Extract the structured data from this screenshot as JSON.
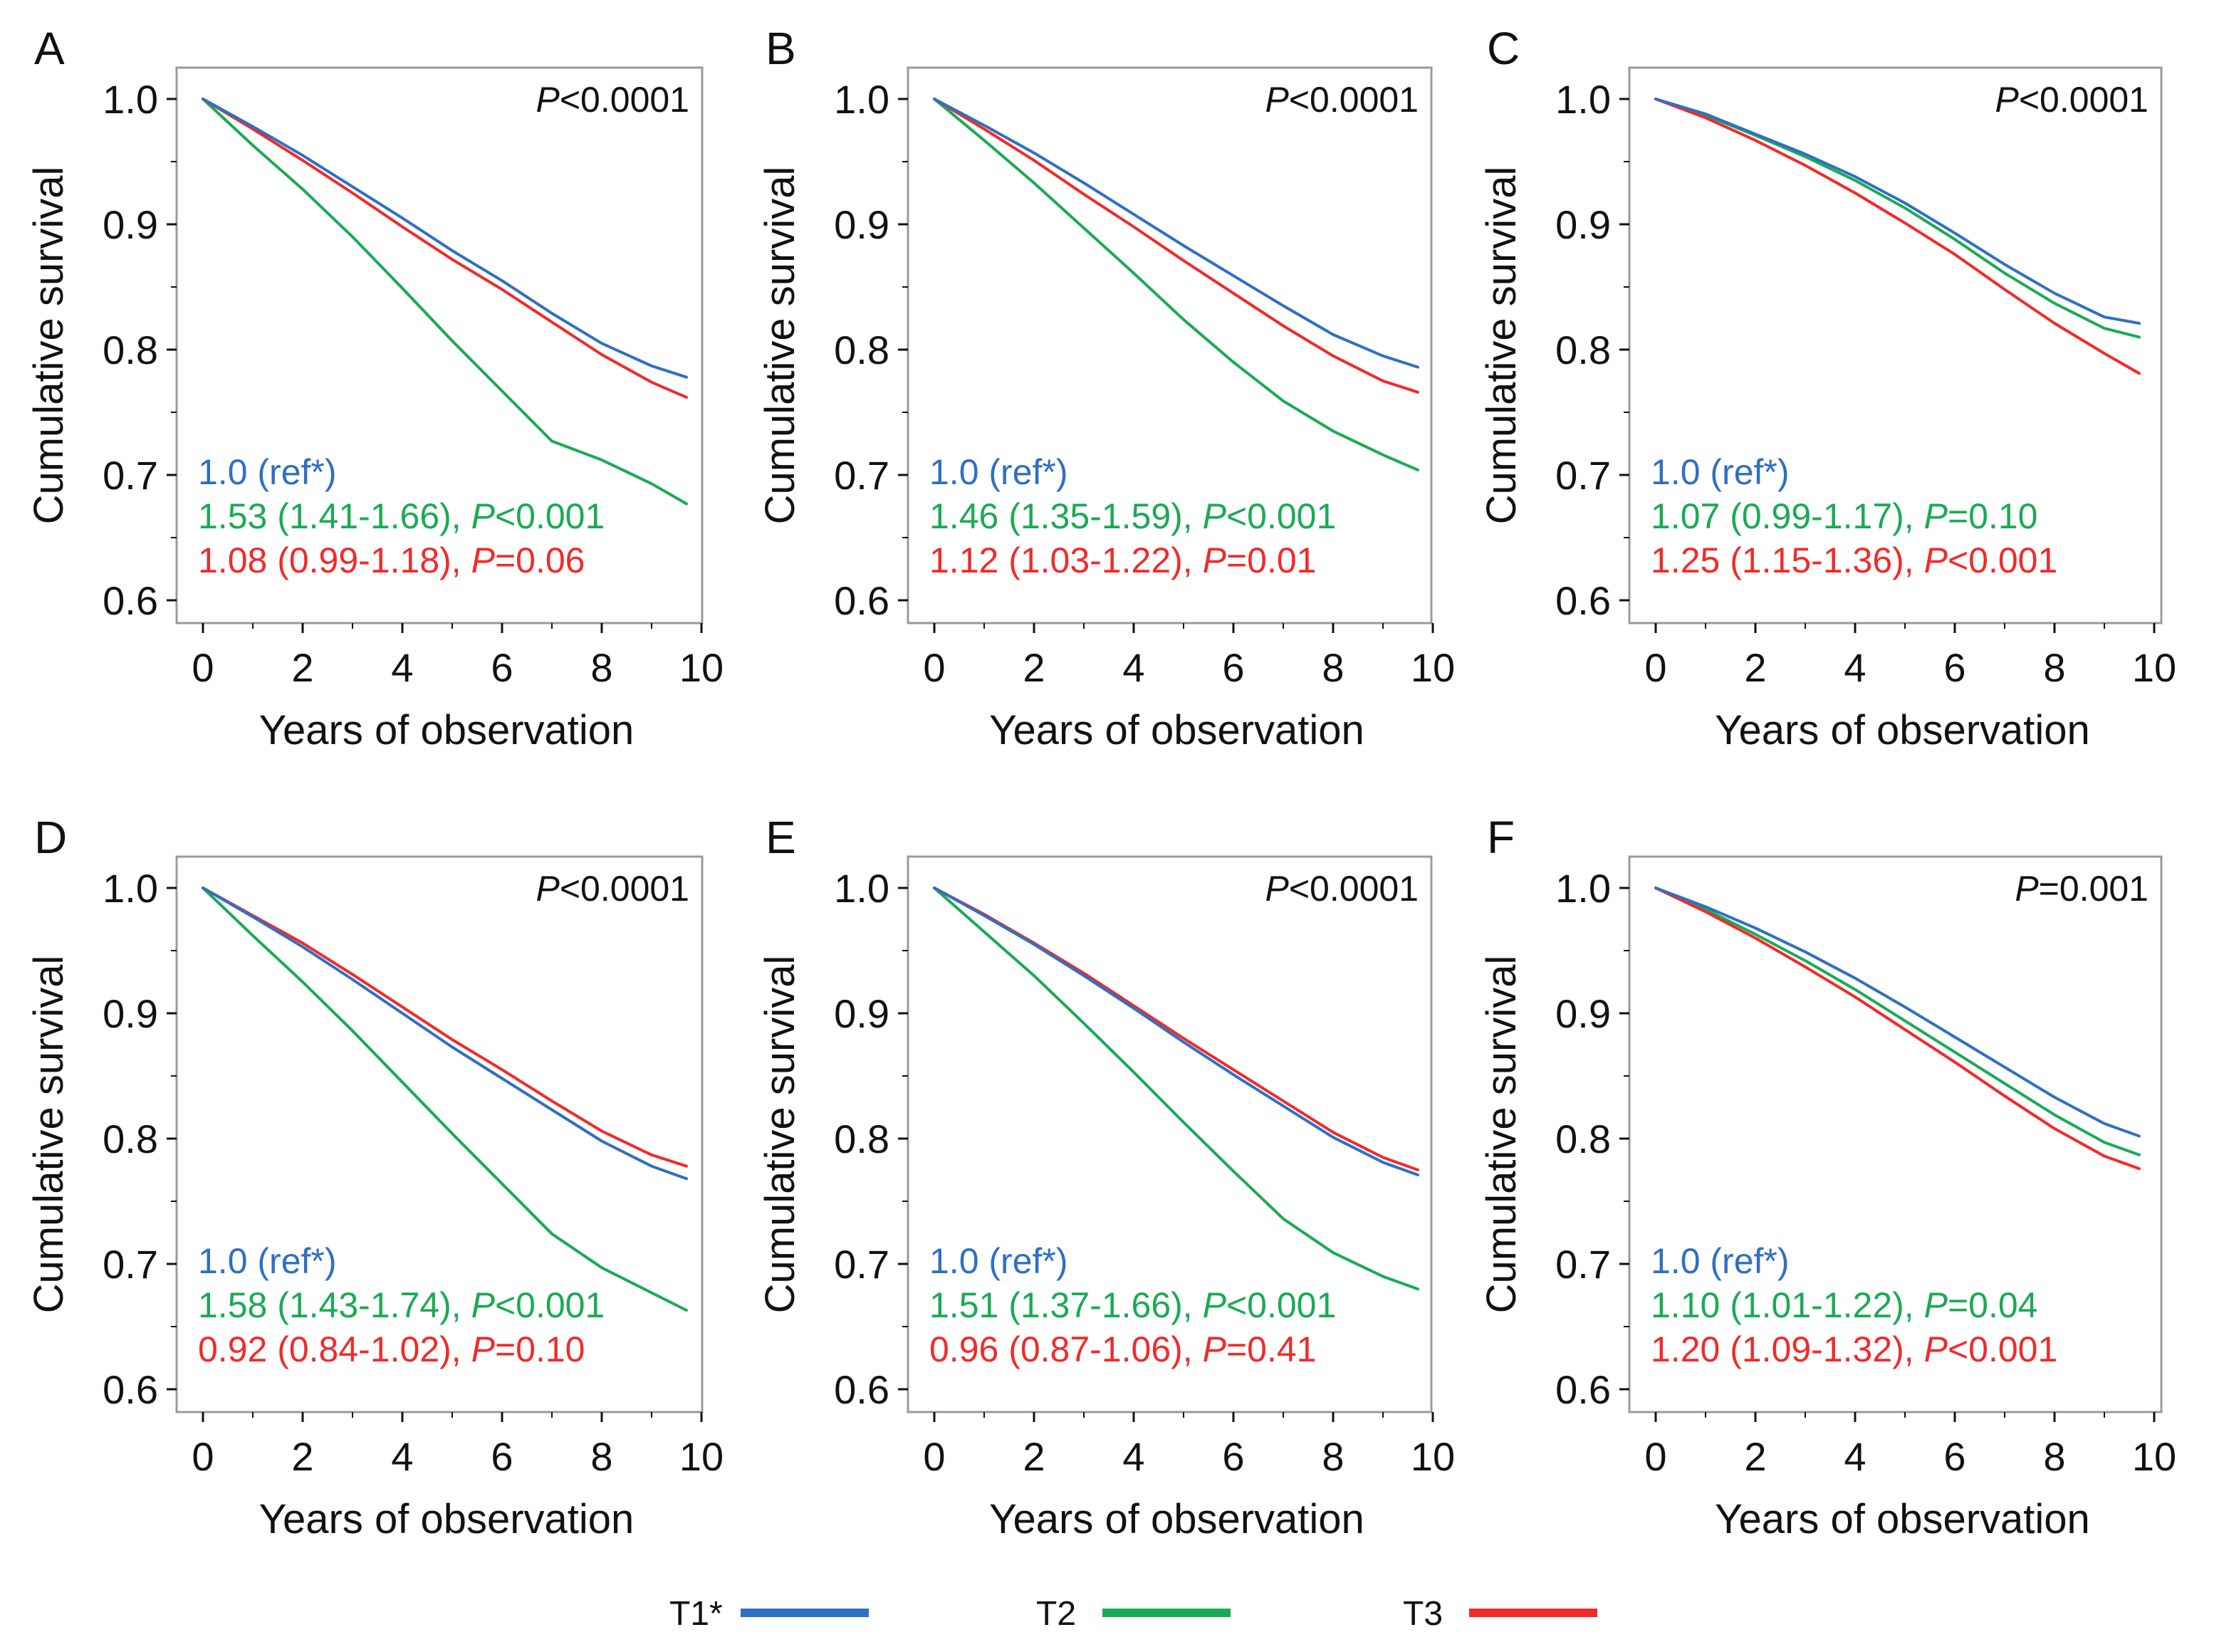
{
  "colors": {
    "T1": "#2f6fc4",
    "T2": "#1aaa55",
    "T3": "#f12a2a",
    "frame": "#9a9a9a",
    "text": "#111111"
  },
  "chart_data": [
    {
      "type": "line",
      "panel": "A",
      "xlabel": "Years of observation",
      "ylabel": "Cumulative survival",
      "xlim": [
        0,
        10
      ],
      "ylim": [
        0.6,
        1.0
      ],
      "xticks": [
        "0",
        "2",
        "4",
        "6",
        "8",
        "10"
      ],
      "yticks": [
        "0.6",
        "0.7",
        "0.8",
        "0.9",
        "1.0"
      ],
      "pvalue": {
        "italic": "P",
        "rest": "<0.0001"
      },
      "annotations": [
        {
          "series": "T1",
          "text": "1.0 (ref*)"
        },
        {
          "series": "T2",
          "text": "1.53 (1.41-1.66), ",
          "italic": "P",
          "rest": "<0.001"
        },
        {
          "series": "T3",
          "text": "1.08 (0.99-1.18), ",
          "italic": "P",
          "rest": "=0.06"
        }
      ],
      "x": [
        0,
        1,
        2,
        3,
        4,
        5,
        6,
        7,
        8,
        9,
        9.7
      ],
      "series": [
        {
          "name": "T1",
          "values": [
            1.0,
            0.978,
            0.955,
            0.93,
            0.905,
            0.879,
            0.855,
            0.829,
            0.805,
            0.787,
            0.778
          ]
        },
        {
          "name": "T2",
          "values": [
            1.0,
            0.963,
            0.928,
            0.89,
            0.849,
            0.807,
            0.767,
            0.727,
            0.712,
            0.693,
            0.677
          ]
        },
        {
          "name": "T3",
          "values": [
            1.0,
            0.976,
            0.951,
            0.925,
            0.898,
            0.872,
            0.848,
            0.822,
            0.796,
            0.774,
            0.762
          ]
        }
      ]
    },
    {
      "type": "line",
      "panel": "B",
      "xlabel": "Years of observation",
      "ylabel": "Cumulative survival",
      "xlim": [
        0,
        10
      ],
      "ylim": [
        0.6,
        1.0
      ],
      "xticks": [
        "0",
        "2",
        "4",
        "6",
        "8",
        "10"
      ],
      "yticks": [
        "0.6",
        "0.7",
        "0.8",
        "0.9",
        "1.0"
      ],
      "pvalue": {
        "italic": "P",
        "rest": "<0.0001"
      },
      "annotations": [
        {
          "series": "T1",
          "text": "1.0 (ref*)"
        },
        {
          "series": "T2",
          "text": "1.46 (1.35-1.59), ",
          "italic": "P",
          "rest": "<0.001"
        },
        {
          "series": "T3",
          "text": "1.12 (1.03-1.22), ",
          "italic": "P",
          "rest": "=0.01"
        }
      ],
      "x": [
        0,
        1,
        2,
        3,
        4,
        5,
        6,
        7,
        8,
        9,
        9.7
      ],
      "series": [
        {
          "name": "T1",
          "values": [
            1.0,
            0.979,
            0.957,
            0.933,
            0.908,
            0.883,
            0.859,
            0.835,
            0.812,
            0.795,
            0.786
          ]
        },
        {
          "name": "T2",
          "values": [
            1.0,
            0.967,
            0.933,
            0.897,
            0.861,
            0.824,
            0.79,
            0.759,
            0.735,
            0.716,
            0.704
          ]
        },
        {
          "name": "T3",
          "values": [
            1.0,
            0.976,
            0.951,
            0.924,
            0.898,
            0.871,
            0.845,
            0.819,
            0.795,
            0.775,
            0.766
          ]
        }
      ]
    },
    {
      "type": "line",
      "panel": "C",
      "xlabel": "Years of observation",
      "ylabel": "Cumulative survival",
      "xlim": [
        0,
        10
      ],
      "ylim": [
        0.6,
        1.0
      ],
      "xticks": [
        "0",
        "2",
        "4",
        "6",
        "8",
        "10"
      ],
      "yticks": [
        "0.6",
        "0.7",
        "0.8",
        "0.9",
        "1.0"
      ],
      "pvalue": {
        "italic": "P",
        "rest": "<0.0001"
      },
      "annotations": [
        {
          "series": "T1",
          "text": "1.0 (ref*)"
        },
        {
          "series": "T2",
          "text": "1.07 (0.99-1.17), ",
          "italic": "P",
          "rest": "=0.10"
        },
        {
          "series": "T3",
          "text": "1.25 (1.15-1.36), ",
          "italic": "P",
          "rest": "<0.001"
        }
      ],
      "x": [
        0,
        1,
        2,
        3,
        4,
        5,
        6,
        7,
        8,
        9,
        9.7
      ],
      "series": [
        {
          "name": "T1",
          "values": [
            1.0,
            0.988,
            0.972,
            0.956,
            0.938,
            0.917,
            0.893,
            0.868,
            0.845,
            0.826,
            0.821
          ]
        },
        {
          "name": "T2",
          "values": [
            1.0,
            0.987,
            0.971,
            0.954,
            0.935,
            0.913,
            0.888,
            0.861,
            0.837,
            0.817,
            0.81
          ]
        },
        {
          "name": "T3",
          "values": [
            1.0,
            0.985,
            0.967,
            0.947,
            0.925,
            0.901,
            0.876,
            0.848,
            0.821,
            0.797,
            0.781
          ]
        }
      ]
    },
    {
      "type": "line",
      "panel": "D",
      "xlabel": "Years of observation",
      "ylabel": "Cumulative survival",
      "xlim": [
        0,
        10
      ],
      "ylim": [
        0.6,
        1.0
      ],
      "xticks": [
        "0",
        "2",
        "4",
        "6",
        "8",
        "10"
      ],
      "yticks": [
        "0.6",
        "0.7",
        "0.8",
        "0.9",
        "1.0"
      ],
      "pvalue": {
        "italic": "P",
        "rest": "<0.0001"
      },
      "annotations": [
        {
          "series": "T1",
          "text": "1.0 (ref*)"
        },
        {
          "series": "T2",
          "text": "1.58 (1.43-1.74), ",
          "italic": "P",
          "rest": "<0.001"
        },
        {
          "series": "T3",
          "text": "0.92 (0.84-1.02), ",
          "italic": "P",
          "rest": "=0.10"
        }
      ],
      "x": [
        0,
        1,
        2,
        3,
        4,
        5,
        6,
        7,
        8,
        9,
        9.7
      ],
      "series": [
        {
          "name": "T1",
          "values": [
            1.0,
            0.977,
            0.953,
            0.927,
            0.9,
            0.873,
            0.848,
            0.823,
            0.798,
            0.778,
            0.768
          ]
        },
        {
          "name": "T2",
          "values": [
            1.0,
            0.962,
            0.925,
            0.886,
            0.845,
            0.804,
            0.764,
            0.724,
            0.697,
            0.677,
            0.663
          ]
        },
        {
          "name": "T3",
          "values": [
            1.0,
            0.978,
            0.956,
            0.931,
            0.905,
            0.879,
            0.855,
            0.83,
            0.806,
            0.787,
            0.778
          ]
        }
      ]
    },
    {
      "type": "line",
      "panel": "E",
      "xlabel": "Years of observation",
      "ylabel": "Cumulative survival",
      "xlim": [
        0,
        10
      ],
      "ylim": [
        0.6,
        1.0
      ],
      "xticks": [
        "0",
        "2",
        "4",
        "6",
        "8",
        "10"
      ],
      "yticks": [
        "0.6",
        "0.7",
        "0.8",
        "0.9",
        "1.0"
      ],
      "pvalue": {
        "italic": "P",
        "rest": "<0.0001"
      },
      "annotations": [
        {
          "series": "T1",
          "text": "1.0 (ref*)"
        },
        {
          "series": "T2",
          "text": "1.51 (1.37-1.66), ",
          "italic": "P",
          "rest": "<0.001"
        },
        {
          "series": "T3",
          "text": "0.96 (0.87-1.06), ",
          "italic": "P",
          "rest": "=0.41"
        }
      ],
      "x": [
        0,
        1,
        2,
        3,
        4,
        5,
        6,
        7,
        8,
        9,
        9.7
      ],
      "series": [
        {
          "name": "T1",
          "values": [
            1.0,
            0.978,
            0.955,
            0.93,
            0.904,
            0.877,
            0.851,
            0.826,
            0.801,
            0.781,
            0.771
          ]
        },
        {
          "name": "T2",
          "values": [
            1.0,
            0.965,
            0.93,
            0.892,
            0.853,
            0.813,
            0.774,
            0.736,
            0.709,
            0.69,
            0.68
          ]
        },
        {
          "name": "T3",
          "values": [
            1.0,
            0.979,
            0.956,
            0.932,
            0.906,
            0.88,
            0.855,
            0.83,
            0.805,
            0.785,
            0.775
          ]
        }
      ]
    },
    {
      "type": "line",
      "panel": "F",
      "xlabel": "Years of observation",
      "ylabel": "Cumulative survival",
      "xlim": [
        0,
        10
      ],
      "ylim": [
        0.6,
        1.0
      ],
      "xticks": [
        "0",
        "2",
        "4",
        "6",
        "8",
        "10"
      ],
      "yticks": [
        "0.6",
        "0.7",
        "0.8",
        "0.9",
        "1.0"
      ],
      "pvalue": {
        "italic": "P",
        "rest": "=0.001"
      },
      "annotations": [
        {
          "series": "T1",
          "text": "1.0 (ref*)"
        },
        {
          "series": "T2",
          "text": "1.10 (1.01-1.22), ",
          "italic": "P",
          "rest": "=0.04"
        },
        {
          "series": "T3",
          "text": "1.20 (1.09-1.32), ",
          "italic": "P",
          "rest": "<0.001"
        }
      ],
      "x": [
        0,
        1,
        2,
        3,
        4,
        5,
        6,
        7,
        8,
        9,
        9.7
      ],
      "series": [
        {
          "name": "T1",
          "values": [
            1.0,
            0.985,
            0.968,
            0.949,
            0.928,
            0.905,
            0.881,
            0.857,
            0.833,
            0.812,
            0.802
          ]
        },
        {
          "name": "T2",
          "values": [
            1.0,
            0.983,
            0.963,
            0.942,
            0.919,
            0.894,
            0.869,
            0.844,
            0.819,
            0.797,
            0.787
          ]
        },
        {
          "name": "T3",
          "values": [
            1.0,
            0.981,
            0.96,
            0.937,
            0.913,
            0.887,
            0.861,
            0.834,
            0.808,
            0.786,
            0.776
          ]
        }
      ]
    }
  ],
  "legend": [
    {
      "series": "T1",
      "label": "T1*"
    },
    {
      "series": "T2",
      "label": "T2"
    },
    {
      "series": "T3",
      "label": "T3"
    }
  ]
}
